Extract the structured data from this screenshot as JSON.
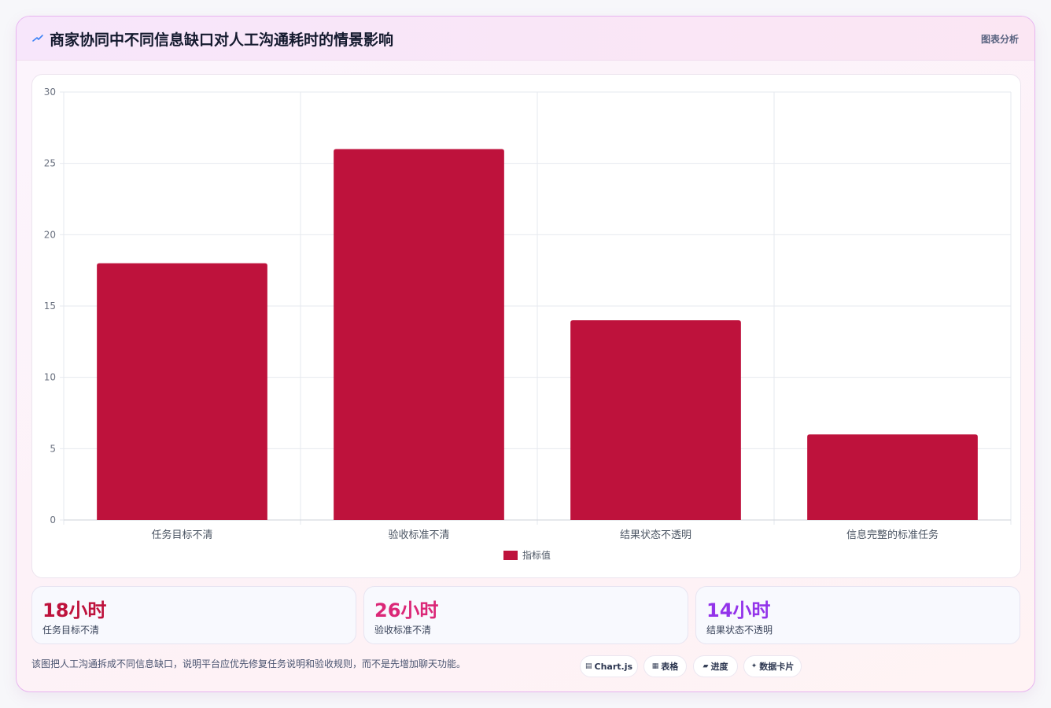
{
  "header": {
    "title": "商家协同中不同信息缺口对人工沟通耗时的情景影响",
    "analysis_label": "图表分析",
    "icon": "bolt-icon"
  },
  "chart_data": {
    "type": "bar",
    "categories": [
      "任务目标不清",
      "验收标准不清",
      "结果状态不透明",
      "信息完整的标准任务"
    ],
    "series": [
      {
        "name": "指标值",
        "values": [
          18,
          26,
          14,
          6
        ],
        "color": "#be123c"
      }
    ],
    "ylim": [
      0,
      30
    ],
    "yticks": [
      0,
      5,
      10,
      15,
      20,
      25,
      30
    ],
    "grid": true,
    "legend": "bottom"
  },
  "stats": [
    {
      "value": "18小时",
      "label": "任务目标不清",
      "color": "#be123c"
    },
    {
      "value": "26小时",
      "label": "验收标准不清",
      "color": "#db2777"
    },
    {
      "value": "14小时",
      "label": "结果状态不透明",
      "color": "#9333ea"
    }
  ],
  "footer": {
    "note": "该图把人工沟通拆成不同信息缺口，说明平台应优先修复任务说明和验收规则，而不是先增加聊天功能。",
    "chips": [
      {
        "icon": "chart-icon",
        "glyph": "▤",
        "label": "Chart.js"
      },
      {
        "icon": "table-icon",
        "glyph": "▦",
        "label": "表格"
      },
      {
        "icon": "progress-icon",
        "glyph": "▰",
        "label": "进度"
      },
      {
        "icon": "sparkle-icon",
        "glyph": "✦",
        "label": "数据卡片"
      }
    ]
  }
}
